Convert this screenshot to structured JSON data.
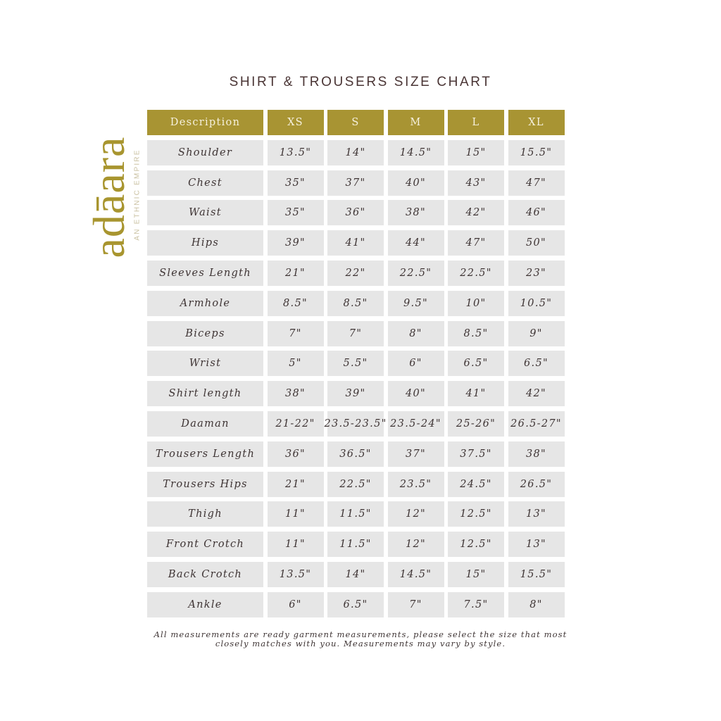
{
  "title": "SHIRT & TROUSERS SIZE CHART",
  "brand": {
    "name": "adāara",
    "tagline": "AN ETHNIC EMPIRE",
    "color": "#a8952f"
  },
  "colors": {
    "header": "#a89433",
    "cell": "#e6e6e6",
    "text": "#3e3434"
  },
  "table": {
    "headers": [
      "Description",
      "XS",
      "S",
      "M",
      "L",
      "XL"
    ],
    "rows": [
      [
        "Shoulder",
        "13.5\"",
        "14\"",
        "14.5\"",
        "15\"",
        "15.5\""
      ],
      [
        "Chest",
        "35\"",
        "37\"",
        "40\"",
        "43\"",
        "47\""
      ],
      [
        "Waist",
        "35\"",
        "36\"",
        "38\"",
        "42\"",
        "46\""
      ],
      [
        "Hips",
        "39\"",
        "41\"",
        "44\"",
        "47\"",
        "50\""
      ],
      [
        "Sleeves Length",
        "21\"",
        "22\"",
        "22.5\"",
        "22.5\"",
        "23\""
      ],
      [
        "Armhole",
        "8.5\"",
        "8.5\"",
        "9.5\"",
        "10\"",
        "10.5\""
      ],
      [
        "Biceps",
        "7\"",
        "7\"",
        "8\"",
        "8.5\"",
        "9\""
      ],
      [
        "Wrist",
        "5\"",
        "5.5\"",
        "6\"",
        "6.5\"",
        "6.5\""
      ],
      [
        "Shirt length",
        "38\"",
        "39\"",
        "40\"",
        "41\"",
        "42\""
      ],
      [
        "Daaman",
        "21-22\"",
        "23.5-23.5\"",
        "23.5-24\"",
        "25-26\"",
        "26.5-27\""
      ],
      [
        "Trousers Length",
        "36\"",
        "36.5\"",
        "37\"",
        "37.5\"",
        "38\""
      ],
      [
        "Trousers Hips",
        "21\"",
        "22.5\"",
        "23.5\"",
        "24.5\"",
        "26.5\""
      ],
      [
        "Thigh",
        "11\"",
        "11.5\"",
        "12\"",
        "12.5\"",
        "13\""
      ],
      [
        "Front Crotch",
        "11\"",
        "11.5\"",
        "12\"",
        "12.5\"",
        "13\""
      ],
      [
        "Back Crotch",
        "13.5\"",
        "14\"",
        "14.5\"",
        "15\"",
        "15.5\""
      ],
      [
        "Ankle",
        "6\"",
        "6.5\"",
        "7\"",
        "7.5\"",
        "8\""
      ]
    ]
  },
  "note": "All measurements are ready garment measurements, please select the size that most closely matches with you. Measurements may vary by style."
}
